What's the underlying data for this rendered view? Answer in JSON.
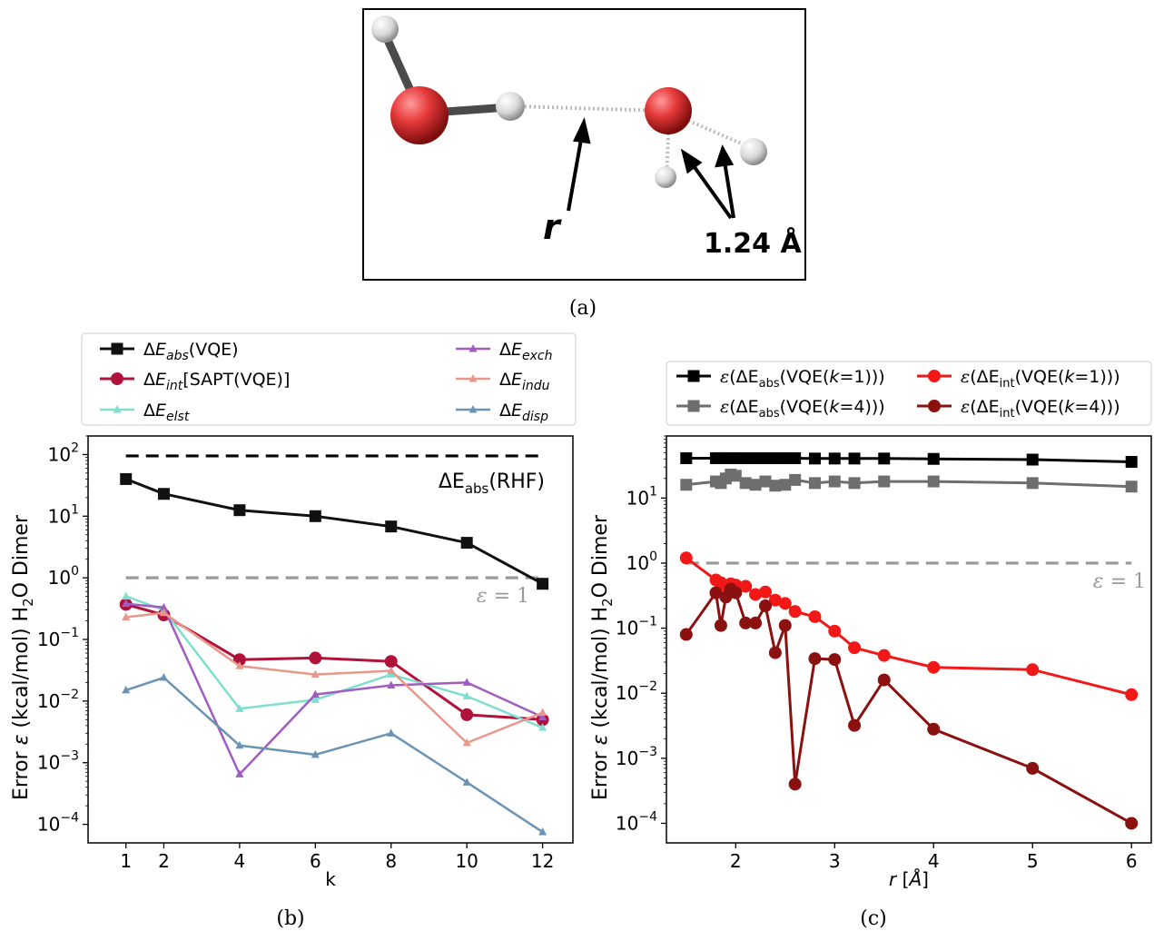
{
  "captions": {
    "a": "(a)",
    "b": "(b)",
    "c": "(c)"
  },
  "molecule": {
    "r_label": "r",
    "bond_label": "1.24 Å"
  },
  "chart_data": [
    {
      "id": "b",
      "type": "line",
      "xlabel": "k",
      "ylabel": "Error ε (kcal/mol) H2O Dimer",
      "yscale": "log",
      "ylim": [
        5e-05,
        200
      ],
      "xlim": [
        0,
        12.8
      ],
      "xticks": [
        1,
        2,
        4,
        6,
        8,
        10,
        12
      ],
      "yticks": [
        {
          "v": 0.0001,
          "b": "10",
          "e": "−4"
        },
        {
          "v": 0.001,
          "b": "10",
          "e": "−3"
        },
        {
          "v": 0.01,
          "b": "10",
          "e": "−2"
        },
        {
          "v": 0.1,
          "b": "10",
          "e": "−1"
        },
        {
          "v": 1,
          "b": "10",
          "e": "0"
        },
        {
          "v": 10,
          "b": "10",
          "e": "1"
        },
        {
          "v": 100,
          "b": "10",
          "e": "2"
        }
      ],
      "hlines": [
        {
          "y": 95,
          "color": "#000000",
          "label": "ΔE",
          "label_sub": "abs",
          "label_tail": "(RHF)"
        },
        {
          "y": 1,
          "color": "#999999",
          "label": "ε = 1"
        }
      ],
      "series": [
        {
          "name": "ΔE",
          "sub": "abs",
          "tail": "(VQE)",
          "color": "#111111",
          "marker": "square",
          "width": 3,
          "x": [
            1,
            2,
            4,
            6,
            8,
            10,
            12
          ],
          "y": [
            40,
            23,
            12.5,
            10,
            6.8,
            3.7,
            0.8
          ]
        },
        {
          "name": "ΔE",
          "sub": "int",
          "tail": "[SAPT(VQE)]",
          "color": "#b0123a",
          "marker": "circle",
          "width": 3,
          "x": [
            1,
            2,
            4,
            6,
            8,
            10,
            12
          ],
          "y": [
            0.37,
            0.25,
            0.047,
            0.05,
            0.044,
            0.006,
            0.005
          ]
        },
        {
          "name": "ΔE",
          "sub": "elst",
          "tail": "",
          "color": "#7fded0",
          "marker": "triangle",
          "width": 2.5,
          "x": [
            1,
            2,
            4,
            6,
            8,
            10,
            12
          ],
          "y": [
            0.5,
            0.3,
            0.0075,
            0.0105,
            0.027,
            0.012,
            0.0037
          ]
        },
        {
          "name": "ΔE",
          "sub": "exch",
          "tail": "",
          "color": "#a15cbf",
          "marker": "triangle",
          "width": 2.5,
          "x": [
            1,
            2,
            4,
            6,
            8,
            10,
            12
          ],
          "y": [
            0.38,
            0.33,
            0.00065,
            0.0128,
            0.018,
            0.02,
            0.0055
          ]
        },
        {
          "name": "ΔE",
          "sub": "indu",
          "tail": "",
          "color": "#e8978a",
          "marker": "triangle",
          "width": 2.5,
          "x": [
            1,
            2,
            4,
            6,
            8,
            10,
            12
          ],
          "y": [
            0.23,
            0.27,
            0.037,
            0.027,
            0.031,
            0.0021,
            0.0065
          ]
        },
        {
          "name": "ΔE",
          "sub": "disp",
          "tail": "",
          "color": "#6b93b3",
          "marker": "triangle",
          "width": 2.5,
          "x": [
            1,
            2,
            4,
            6,
            8,
            10,
            12
          ],
          "y": [
            0.015,
            0.024,
            0.0019,
            0.00135,
            0.003,
            0.00048,
            7.5e-05
          ]
        }
      ]
    },
    {
      "id": "c",
      "type": "line",
      "xlabel": "r [Å]",
      "ylabel": "Error ε (kcal/mol) H2O Dimer",
      "yscale": "log",
      "ylim": [
        5e-05,
        90
      ],
      "xlim": [
        1.3,
        6.2
      ],
      "xticks": [
        2,
        3,
        4,
        5,
        6
      ],
      "yticks": [
        {
          "v": 0.0001,
          "b": "10",
          "e": "−4"
        },
        {
          "v": 0.001,
          "b": "10",
          "e": "−3"
        },
        {
          "v": 0.01,
          "b": "10",
          "e": "−2"
        },
        {
          "v": 0.1,
          "b": "10",
          "e": "−1"
        },
        {
          "v": 1,
          "b": "10",
          "e": "0"
        },
        {
          "v": 10,
          "b": "10",
          "e": "1"
        }
      ],
      "hlines": [
        {
          "y": 1,
          "color": "#999999",
          "label": "ε = 1"
        }
      ],
      "series": [
        {
          "name": "ε(ΔE",
          "sub": "abs",
          "tail": "(VQE(k=1)))",
          "color": "#000000",
          "marker": "square",
          "width": 3,
          "x": [
            1.5,
            1.8,
            1.85,
            1.9,
            1.95,
            2.0,
            2.1,
            2.2,
            2.3,
            2.4,
            2.5,
            2.6,
            2.8,
            3.0,
            3.2,
            3.5,
            4.0,
            5.0,
            6.0
          ],
          "y": [
            41,
            41,
            41,
            41,
            41,
            41,
            41,
            41,
            41,
            41,
            41,
            41,
            40.5,
            40.5,
            40.5,
            40.5,
            40,
            39,
            36
          ]
        },
        {
          "name": "ε(ΔE",
          "sub": "abs",
          "tail": "(VQE(k=4)))",
          "color": "#6e6e6e",
          "marker": "square",
          "width": 3,
          "x": [
            1.5,
            1.8,
            1.85,
            1.9,
            1.95,
            2.0,
            2.1,
            2.2,
            2.3,
            2.4,
            2.5,
            2.6,
            2.8,
            3.0,
            3.2,
            3.5,
            4.0,
            5.0,
            6.0
          ],
          "y": [
            16,
            18,
            17,
            20,
            23,
            22,
            17,
            16,
            18,
            15.5,
            16,
            19,
            17,
            18,
            17,
            18,
            18,
            17,
            15
          ]
        },
        {
          "name": "ε(ΔE",
          "sub": "int",
          "tail": "(VQE(k=1)))",
          "color": "#f21818",
          "marker": "circle",
          "width": 3,
          "x": [
            1.5,
            1.8,
            1.85,
            1.9,
            1.95,
            2.0,
            2.1,
            2.2,
            2.3,
            2.4,
            2.5,
            2.6,
            2.8,
            3.0,
            3.2,
            3.5,
            4.0,
            5.0,
            6.0
          ],
          "y": [
            1.2,
            0.55,
            0.5,
            0.45,
            0.48,
            0.46,
            0.44,
            0.33,
            0.36,
            0.27,
            0.24,
            0.18,
            0.15,
            0.09,
            0.05,
            0.038,
            0.025,
            0.023,
            0.0095
          ]
        },
        {
          "name": "ε(ΔE",
          "sub": "int",
          "tail": "(VQE(k=4)))",
          "color": "#8b1010",
          "marker": "circle",
          "width": 3,
          "x": [
            1.5,
            1.8,
            1.85,
            1.9,
            1.95,
            2.0,
            2.1,
            2.2,
            2.3,
            2.4,
            2.5,
            2.6,
            2.8,
            3.0,
            3.2,
            3.5,
            4.0,
            5.0,
            6.0
          ],
          "y": [
            0.08,
            0.35,
            0.11,
            0.3,
            0.4,
            0.35,
            0.12,
            0.12,
            0.22,
            0.042,
            0.11,
            0.0004,
            0.034,
            0.033,
            0.0032,
            0.016,
            0.0028,
            0.0007,
            0.0001
          ]
        }
      ]
    }
  ]
}
